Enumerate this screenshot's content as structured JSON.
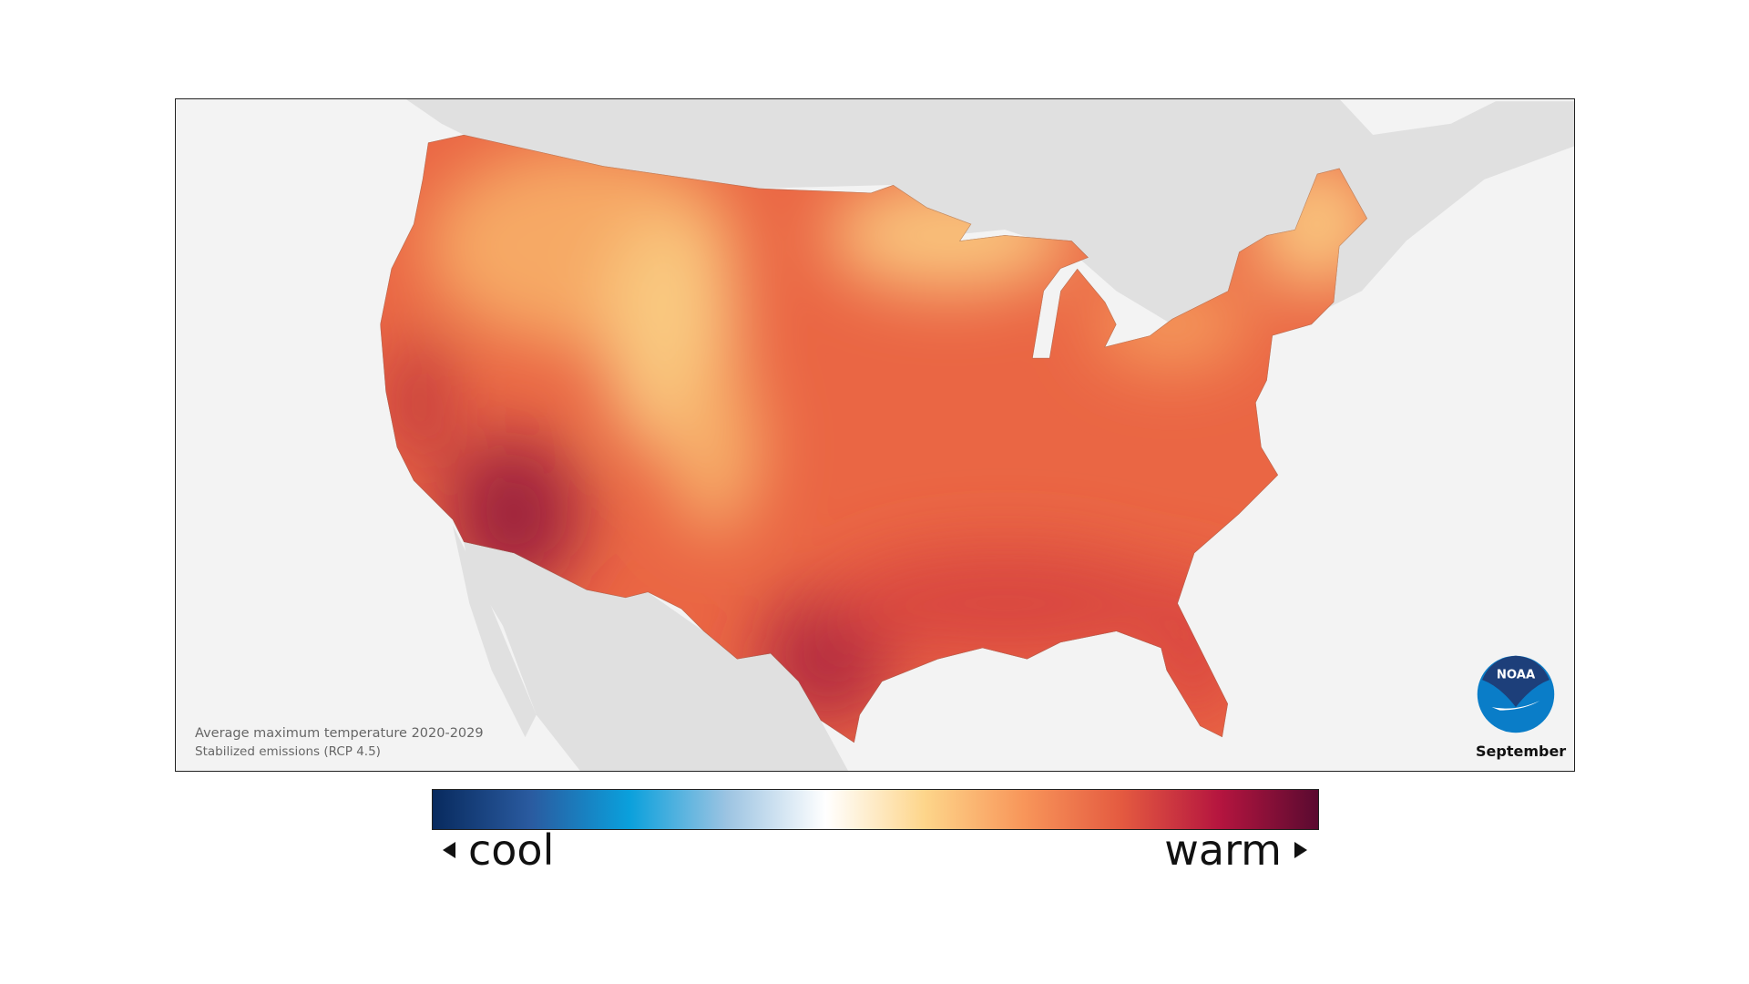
{
  "map": {
    "caption_line1": "Average maximum temperature 2020-2029",
    "caption_line2": "Stabilized emissions (RCP 4.5)",
    "month": "September",
    "logo_text": "NOAA",
    "background_land_color": "#e0e0e0",
    "ocean_color": "#f3f3f3"
  },
  "legend": {
    "low_label": "cool",
    "high_label": "warm",
    "colors": [
      "#082a5e",
      "#2a5ba0",
      "#0aa0dc",
      "#9dc4e2",
      "#ffffff",
      "#fdd58a",
      "#f8965a",
      "#e45a40",
      "#b5153f",
      "#5a0a30"
    ]
  }
}
